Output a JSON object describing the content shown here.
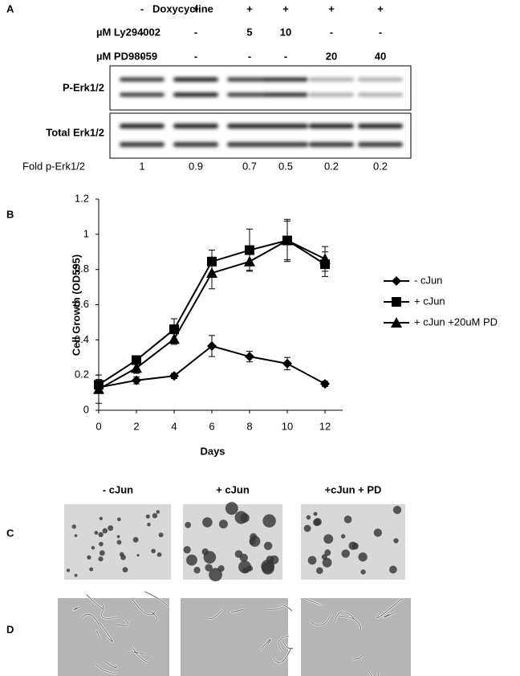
{
  "panel_labels": [
    "A",
    "B",
    "C",
    "D"
  ],
  "panel_a": {
    "rows": [
      {
        "label": "Doxycycline",
        "values": [
          "-",
          "+",
          "+",
          "+",
          "+",
          "+"
        ]
      },
      {
        "label": "µM Ly294002",
        "values": [
          "-",
          "-",
          5,
          10,
          "-",
          "-"
        ]
      },
      {
        "label": "µM PD98059",
        "values": [
          "-",
          "-",
          "-",
          "-",
          20,
          40
        ]
      }
    ],
    "blots": [
      "P-Erk1/2",
      "Total Erk1/2"
    ],
    "fold": {
      "label": "Fold p-Erk1/2",
      "values": [
        1,
        0.9,
        0.7,
        0.5,
        0.2,
        0.2
      ]
    }
  },
  "chart_data": {
    "type": "line",
    "xlabel": "Days",
    "ylabel": "Cell Growth (OD595)",
    "x": [
      0,
      2,
      4,
      6,
      8,
      10,
      12
    ],
    "xlim": [
      0,
      12
    ],
    "xticks": [
      0,
      2,
      4,
      6,
      8,
      10,
      12
    ],
    "ylim": [
      0,
      1.2
    ],
    "yticks": [
      0,
      0.2,
      0.4,
      0.6,
      0.8,
      1,
      1.2
    ],
    "legend": "right",
    "series": [
      {
        "name": "- cJun",
        "color": "#000000",
        "marker": "diamond",
        "values": [
          0.13,
          0.17,
          0.195,
          0.365,
          0.305,
          0.265,
          0.15
        ],
        "errors": [
          0.03,
          0.02,
          0.015,
          0.06,
          0.03,
          0.035,
          0.015
        ]
      },
      {
        "name": "+ cJun",
        "color": "#000000",
        "marker": "square",
        "values": [
          0.145,
          0.285,
          0.46,
          0.845,
          0.91,
          0.965,
          0.83
        ],
        "errors": [
          0.03,
          0.02,
          0.06,
          0.065,
          0.12,
          0.12,
          0.07
        ]
      },
      {
        "name": "+ cJun +20uM PD",
        "color": "#000000",
        "marker": "triangle",
        "values": [
          0.12,
          0.24,
          0.405,
          0.78,
          0.845,
          0.965,
          0.86
        ],
        "errors": [
          0.08,
          0.03,
          0.03,
          0.09,
          0.05,
          0.11,
          0.07
        ]
      }
    ]
  },
  "panel_c": {
    "titles": [
      "- cJun",
      "+ cJun",
      "+cJun + PD"
    ]
  }
}
